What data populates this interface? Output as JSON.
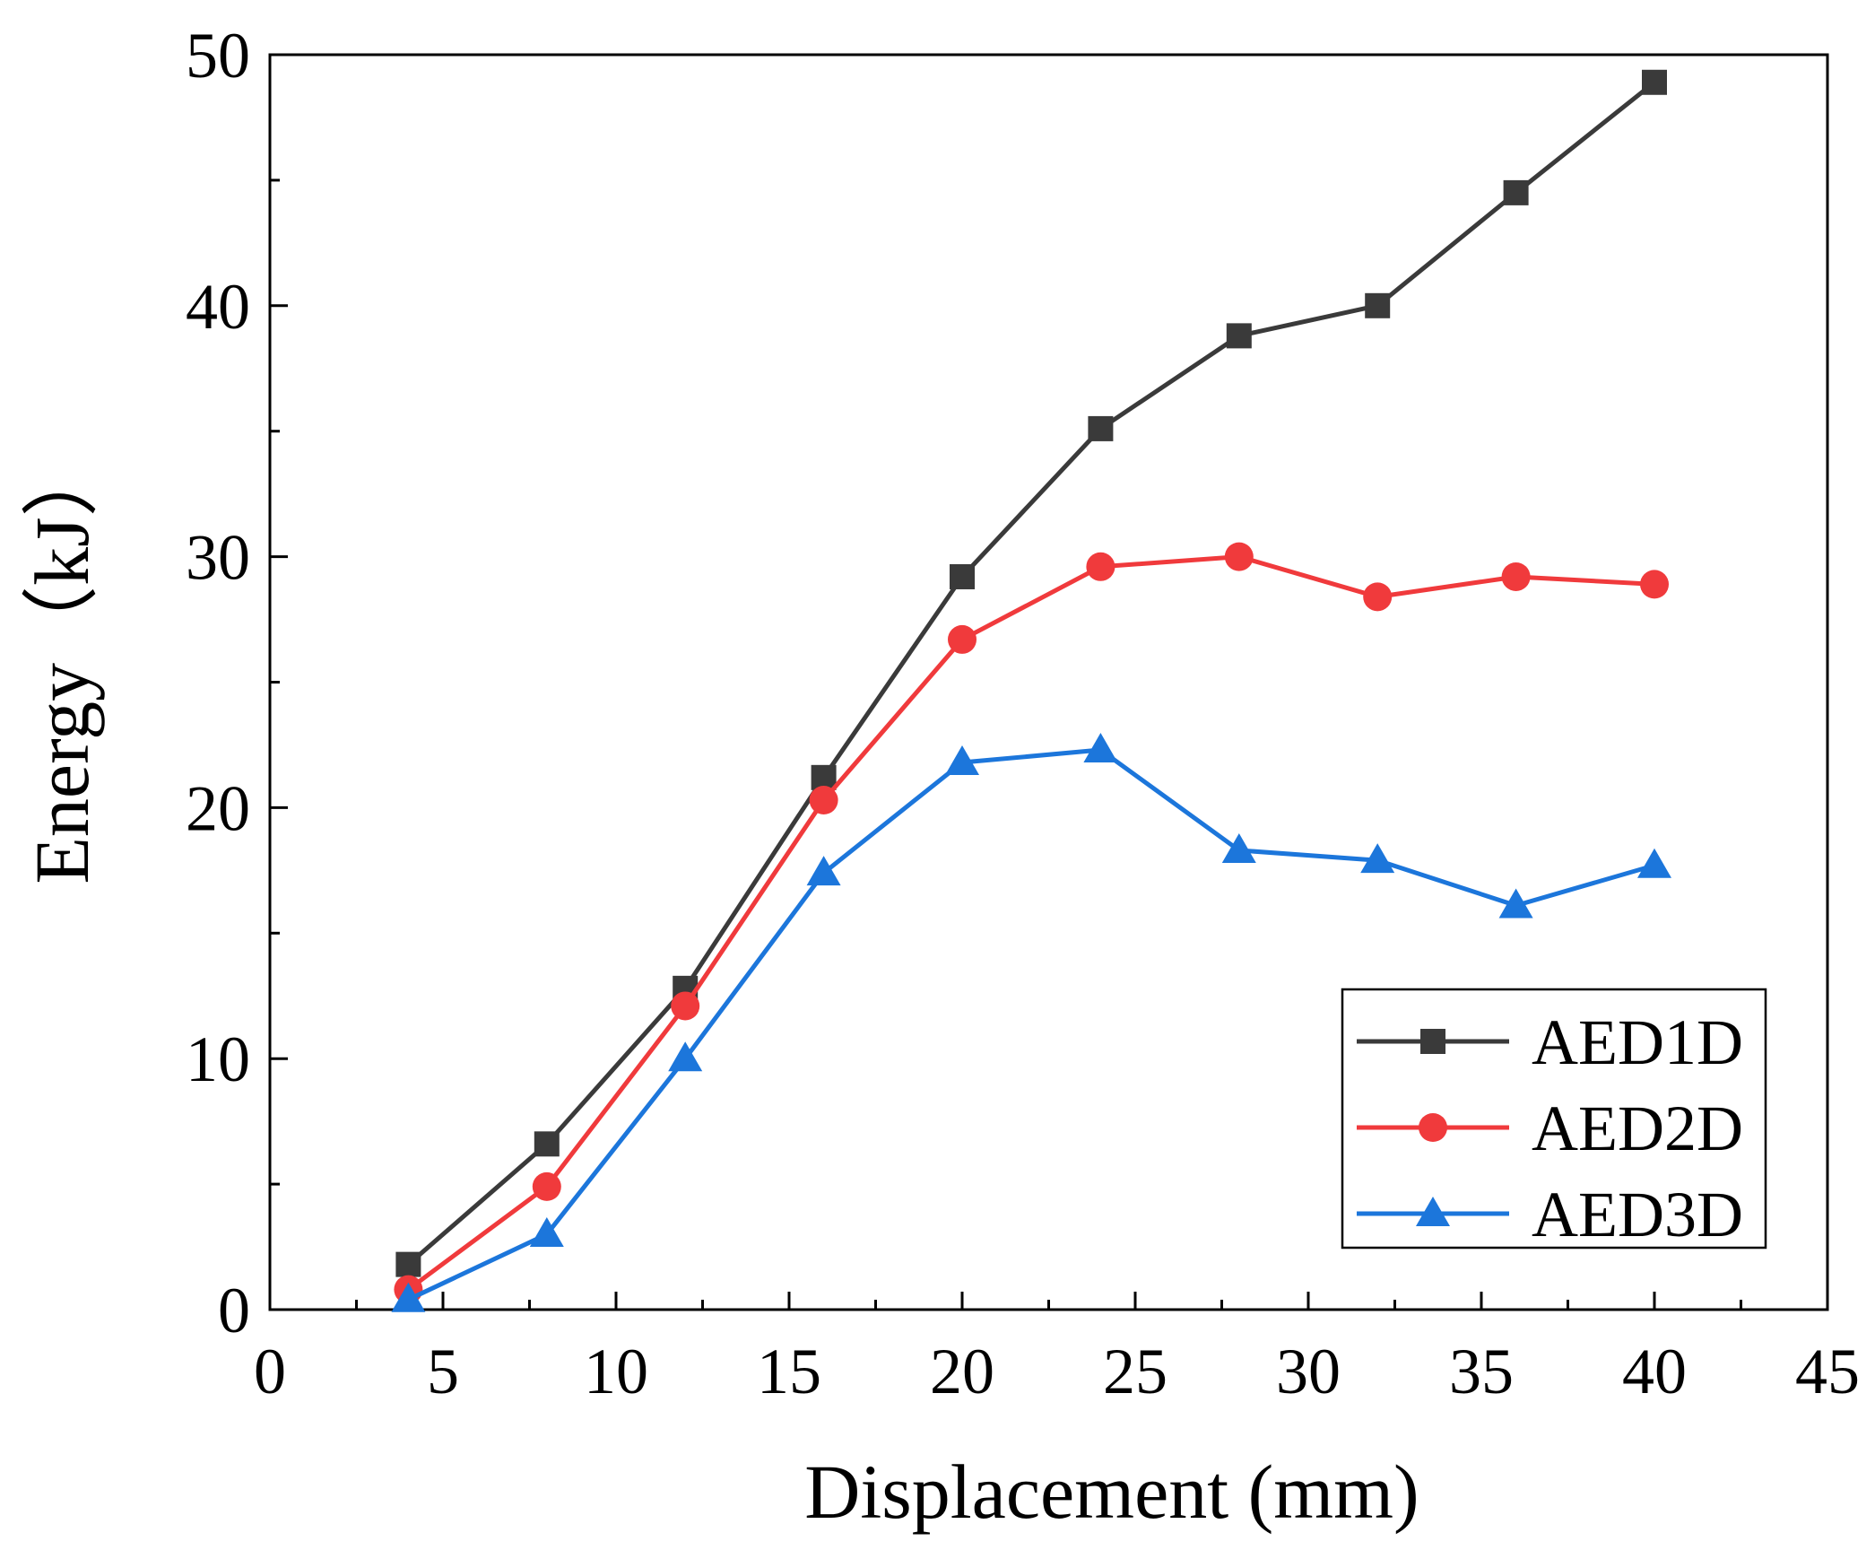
{
  "chart_data": {
    "type": "line",
    "title": "",
    "xlabel": "Displacement (mm)",
    "ylabel": "Energy（kJ）",
    "xlim": [
      0,
      45
    ],
    "ylim": [
      0,
      50
    ],
    "x_ticks": [
      0,
      5,
      10,
      15,
      20,
      25,
      30,
      35,
      40,
      45
    ],
    "y_ticks": [
      0,
      10,
      20,
      30,
      40,
      50
    ],
    "grid": false,
    "legend_position": "bottom-right",
    "x": [
      4,
      8,
      12,
      16,
      20,
      24,
      28,
      32,
      36,
      40
    ],
    "series": [
      {
        "name": "AED1D",
        "marker": "square",
        "color": "#3a3a3a",
        "values": [
          1.8,
          6.6,
          12.8,
          21.2,
          29.2,
          35.1,
          38.8,
          40.0,
          44.5,
          48.9
        ]
      },
      {
        "name": "AED2D",
        "marker": "circle",
        "color": "#f03a3c",
        "values": [
          0.8,
          4.9,
          12.1,
          20.3,
          26.7,
          29.6,
          30.0,
          28.4,
          29.2,
          28.9
        ]
      },
      {
        "name": "AED3D",
        "marker": "triangle",
        "color": "#1c76db",
        "values": [
          0.4,
          3.0,
          10.0,
          17.4,
          21.8,
          22.3,
          18.3,
          17.9,
          16.1,
          17.7
        ]
      }
    ]
  }
}
